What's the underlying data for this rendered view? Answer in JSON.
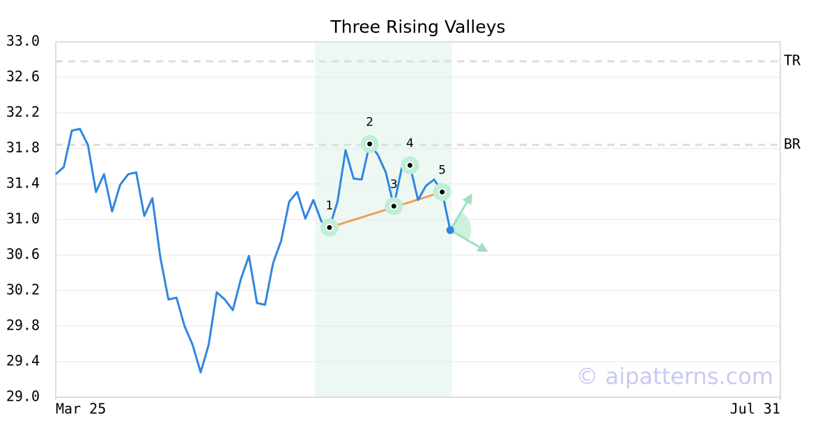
{
  "chart_data": {
    "type": "line",
    "title": "Three Rising Valleys",
    "color": "#2f86e0",
    "values": [
      31.51,
      31.59,
      32.0,
      32.02,
      31.84,
      31.31,
      31.51,
      31.09,
      31.39,
      31.51,
      31.53,
      31.04,
      31.24,
      30.57,
      30.1,
      30.12,
      29.8,
      29.59,
      29.28,
      29.59,
      30.18,
      30.1,
      29.98,
      30.33,
      30.59,
      30.06,
      30.04,
      30.51,
      30.76,
      31.2,
      31.31,
      31.01,
      31.22,
      30.98,
      30.91,
      31.2,
      31.78,
      31.46,
      31.45,
      31.85,
      31.73,
      31.53,
      31.15,
      31.59,
      31.61,
      31.22,
      31.38,
      31.45,
      31.31,
      30.88
    ],
    "xlim": [
      0,
      90
    ],
    "xticks": [
      {
        "value": 0,
        "label": "Mar 25"
      },
      {
        "value": 90,
        "label": "Jul 31"
      }
    ],
    "ylim": [
      29,
      33
    ],
    "yticks": [
      {
        "value": 29,
        "label": "29.0"
      },
      29.4,
      29.8,
      30.2,
      30.6,
      {
        "value": 31,
        "label": "31.0"
      },
      31.4,
      31.8,
      32.2,
      32.6,
      {
        "value": 33,
        "label": "33.0"
      }
    ],
    "grid": true,
    "levels": [
      {
        "label": "TR",
        "value": 32.78
      },
      {
        "label": "BR",
        "value": 31.84
      }
    ],
    "pattern": {
      "span": [
        32.2,
        49.2
      ],
      "trendline_color": "#f0a050",
      "points": [
        {
          "label": "1",
          "x": 34,
          "y": 30.91
        },
        {
          "label": "2",
          "x": 39,
          "y": 31.85
        },
        {
          "label": "3",
          "x": 42,
          "y": 31.15
        },
        {
          "label": "4",
          "x": 44,
          "y": 31.61
        },
        {
          "label": "5",
          "x": 48,
          "y": 31.31
        }
      ]
    },
    "watermark": "© aipatterns.com"
  }
}
